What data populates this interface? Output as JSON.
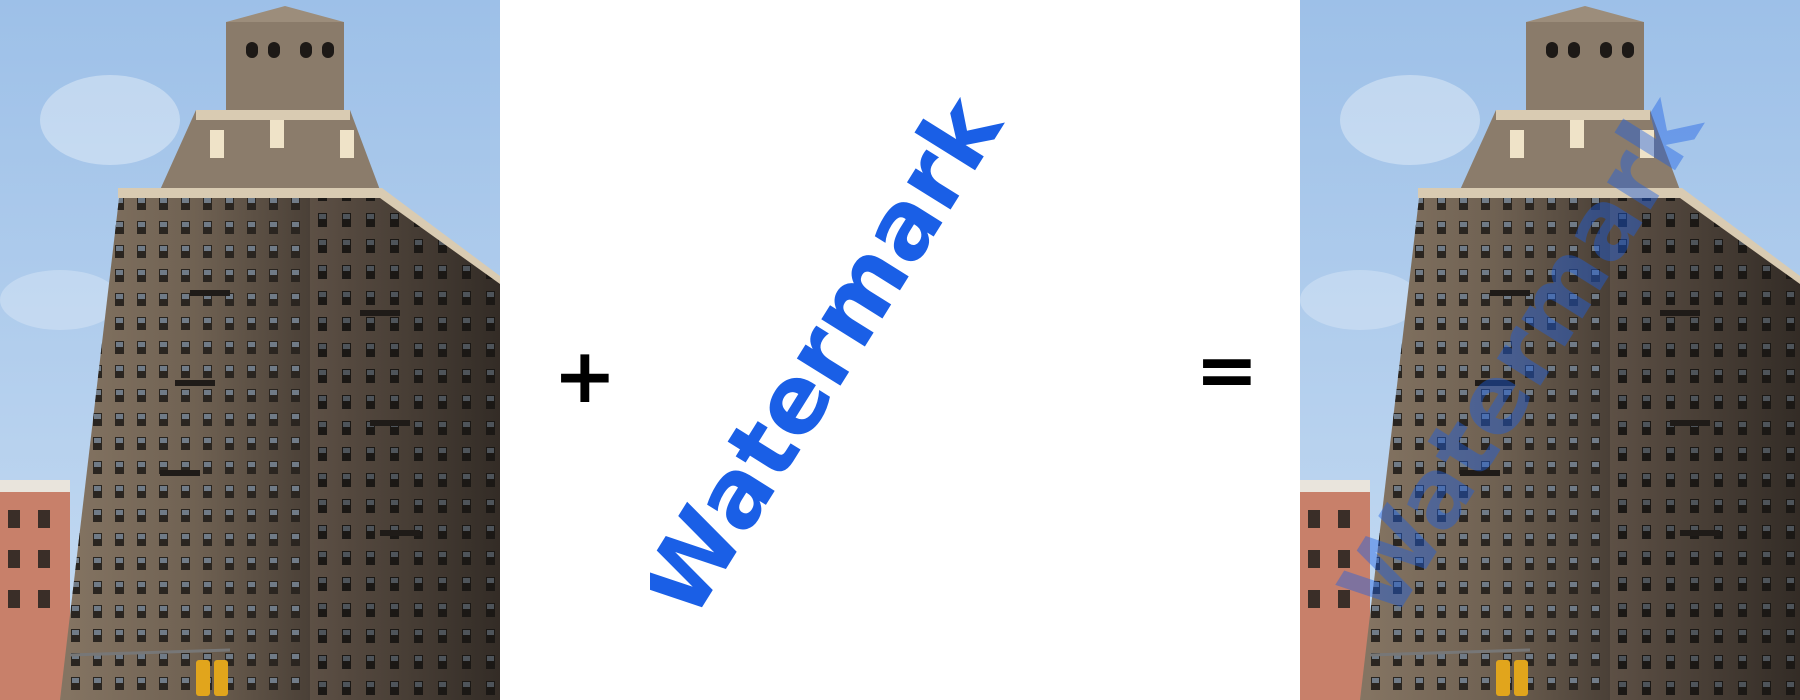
{
  "operators": {
    "plus": "+",
    "equals": "="
  },
  "watermark": {
    "text": "Watermark",
    "color": "#1a5fe6"
  },
  "colors": {
    "sky": "#a9c9ec",
    "facade": "#7a6b5c",
    "shadow": "#3c342d",
    "trim": "#d9cbb2",
    "brick": "#c8806a"
  }
}
